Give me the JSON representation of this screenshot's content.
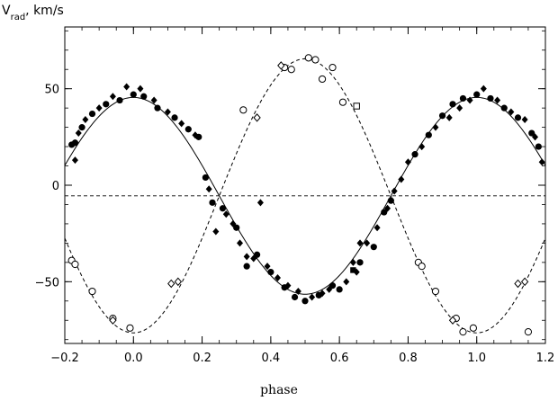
{
  "chart_data": {
    "type": "scatter",
    "title": "",
    "ylabel": {
      "main": "V",
      "sub": "rad",
      "suffix": ",  km/s"
    },
    "xlabel": "phase",
    "xlim": [
      -0.2,
      1.2
    ],
    "ylim": [
      -82,
      82
    ],
    "xticks": [
      -0.2,
      0.0,
      0.2,
      0.4,
      0.6,
      0.8,
      1.0,
      1.2
    ],
    "xtick_labels": [
      "−0.2",
      "0.0",
      "0.2",
      "0.4",
      "0.6",
      "0.8",
      "1.0",
      "1.2"
    ],
    "yticks": [
      -50,
      0,
      50
    ],
    "ytick_labels": [
      "−50",
      "0",
      "50"
    ],
    "systemic_velocity": -5.5,
    "curves": [
      {
        "name": "",
        "style": "solid",
        "gamma": -5.5,
        "amplitude": 51,
        "phase0": 0.0
      },
      {
        "name": "",
        "style": "dashed",
        "gamma": -5.5,
        "amplitude": -71,
        "phase0": 0.0
      }
    ],
    "series": [
      {
        "name": "",
        "marker": "filled-circle",
        "points": [
          [
            -0.18,
            21
          ],
          [
            -0.17,
            22
          ],
          [
            -0.15,
            30
          ],
          [
            -0.12,
            37
          ],
          [
            -0.08,
            42
          ],
          [
            -0.04,
            44
          ],
          [
            0.0,
            47
          ],
          [
            0.03,
            46
          ],
          [
            0.07,
            40
          ],
          [
            0.12,
            35
          ],
          [
            0.16,
            29
          ],
          [
            0.19,
            25
          ],
          [
            0.21,
            4
          ],
          [
            0.23,
            -9
          ],
          [
            0.26,
            -12
          ],
          [
            0.3,
            -22
          ],
          [
            0.36,
            -36
          ],
          [
            0.4,
            -45
          ],
          [
            0.44,
            -53
          ],
          [
            0.47,
            -58
          ],
          [
            0.5,
            -60
          ],
          [
            0.54,
            -57
          ],
          [
            0.6,
            -54
          ],
          [
            0.66,
            -40
          ],
          [
            0.7,
            -32
          ],
          [
            0.73,
            -14
          ],
          [
            0.75,
            -8
          ],
          [
            0.82,
            16
          ],
          [
            0.86,
            26
          ],
          [
            0.9,
            36
          ],
          [
            0.93,
            42
          ],
          [
            0.96,
            45
          ],
          [
            1.0,
            47
          ],
          [
            1.04,
            45
          ],
          [
            1.08,
            40
          ],
          [
            1.12,
            35
          ],
          [
            1.16,
            27
          ],
          [
            1.18,
            20
          ],
          [
            0.33,
            -42
          ],
          [
            0.58,
            -52
          ]
        ]
      },
      {
        "name": "",
        "marker": "filled-diamond",
        "points": [
          [
            -0.16,
            27
          ],
          [
            -0.14,
            34
          ],
          [
            -0.1,
            40
          ],
          [
            -0.06,
            46
          ],
          [
            -0.02,
            51
          ],
          [
            0.02,
            50
          ],
          [
            0.06,
            44
          ],
          [
            0.1,
            38
          ],
          [
            0.14,
            32
          ],
          [
            0.18,
            26
          ],
          [
            0.22,
            -2
          ],
          [
            0.24,
            -24
          ],
          [
            0.27,
            -15
          ],
          [
            0.29,
            -20
          ],
          [
            0.31,
            -30
          ],
          [
            0.33,
            -37
          ],
          [
            0.35,
            -38
          ],
          [
            0.37,
            -9
          ],
          [
            0.39,
            -42
          ],
          [
            0.42,
            -48
          ],
          [
            0.45,
            -52
          ],
          [
            0.48,
            -55
          ],
          [
            0.52,
            -58
          ],
          [
            0.55,
            -56
          ],
          [
            0.57,
            -54
          ],
          [
            0.62,
            -50
          ],
          [
            0.65,
            -45
          ],
          [
            0.68,
            -30
          ],
          [
            0.71,
            -22
          ],
          [
            0.74,
            -12
          ],
          [
            0.76,
            -3
          ],
          [
            0.78,
            3
          ],
          [
            0.8,
            12
          ],
          [
            0.84,
            20
          ],
          [
            0.88,
            30
          ],
          [
            0.92,
            35
          ],
          [
            0.95,
            40
          ],
          [
            0.98,
            44
          ],
          [
            1.02,
            50
          ],
          [
            1.06,
            44
          ],
          [
            1.1,
            38
          ],
          [
            1.14,
            34
          ],
          [
            1.17,
            25
          ],
          [
            1.19,
            12
          ],
          [
            -0.17,
            13
          ],
          [
            0.64,
            -40
          ],
          [
            0.66,
            -30
          ]
        ]
      },
      {
        "name": "",
        "marker": "open-circle",
        "points": [
          [
            -0.18,
            -39
          ],
          [
            -0.17,
            -41
          ],
          [
            -0.12,
            -55
          ],
          [
            -0.06,
            -69
          ],
          [
            -0.01,
            -74
          ],
          [
            0.32,
            39
          ],
          [
            0.44,
            61
          ],
          [
            0.46,
            60
          ],
          [
            0.51,
            66
          ],
          [
            0.53,
            65
          ],
          [
            0.55,
            55
          ],
          [
            0.58,
            61
          ],
          [
            0.61,
            43
          ],
          [
            0.83,
            -40
          ],
          [
            0.84,
            -42
          ],
          [
            0.88,
            -55
          ],
          [
            0.94,
            -69
          ],
          [
            0.96,
            -76
          ],
          [
            0.99,
            -74
          ],
          [
            1.15,
            -76
          ]
        ]
      },
      {
        "name": "",
        "marker": "open-diamond",
        "points": [
          [
            0.11,
            -51
          ],
          [
            0.13,
            -50
          ],
          [
            0.36,
            35
          ],
          [
            0.43,
            62
          ],
          [
            -0.06,
            -70
          ],
          [
            0.93,
            -70
          ],
          [
            1.12,
            -51
          ],
          [
            1.14,
            -50
          ]
        ]
      },
      {
        "name": "",
        "marker": "open-square",
        "points": [
          [
            0.65,
            41
          ]
        ]
      },
      {
        "name": "",
        "marker": "filled-square",
        "points": [
          [
            0.64,
            -44
          ]
        ]
      }
    ]
  }
}
